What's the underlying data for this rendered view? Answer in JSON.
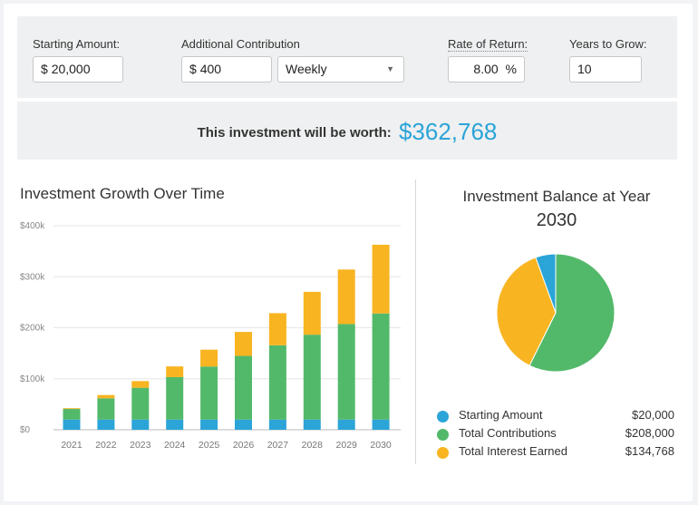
{
  "inputs": {
    "starting_amount_label": "Starting Amount:",
    "starting_amount_prefix": "$",
    "starting_amount_value": "20,000",
    "additional_label": "Additional Contribution",
    "additional_prefix": "$",
    "additional_value": "400",
    "frequency_value": "Weekly",
    "rate_label": "Rate of Return:",
    "rate_value": "8.00",
    "rate_suffix": "%",
    "years_label": "Years to Grow:",
    "years_value": "10"
  },
  "result": {
    "text": "This investment will be worth:",
    "value": "$362,768"
  },
  "bar_chart": {
    "title": "Investment Growth Over Time"
  },
  "pie_chart": {
    "title": "Investment Balance at Year",
    "year": "2030"
  },
  "legend": [
    {
      "name": "Starting Amount",
      "amount": "$20,000",
      "color": "#2ba4d8"
    },
    {
      "name": "Total Contributions",
      "amount": "$208,000",
      "color": "#53b96a"
    },
    {
      "name": "Total Interest Earned",
      "amount": "$134,768",
      "color": "#f8b421"
    }
  ],
  "chart_data": [
    {
      "type": "bar",
      "title": "Investment Growth Over Time",
      "stacked": true,
      "categories": [
        "2021",
        "2022",
        "2023",
        "2024",
        "2025",
        "2026",
        "2027",
        "2028",
        "2029",
        "2030"
      ],
      "series": [
        {
          "name": "Starting Amount",
          "color": "#2ba4d8",
          "values": [
            20000,
            20000,
            20000,
            20000,
            20000,
            20000,
            20000,
            20000,
            20000,
            20000
          ]
        },
        {
          "name": "Total Contributions",
          "color": "#53b96a",
          "values": [
            20800,
            41600,
            62400,
            83200,
            104000,
            124800,
            145600,
            166400,
            187200,
            208000
          ]
        },
        {
          "name": "Total Interest Earned",
          "color": "#f8b421",
          "values": [
            1500,
            6500,
            13000,
            21000,
            33000,
            47000,
            63000,
            84000,
            107000,
            134768
          ]
        }
      ],
      "yticks": [
        "$0",
        "$100k",
        "$200k",
        "$300k",
        "$400k"
      ],
      "ylim": [
        0,
        400000
      ],
      "grid": true
    },
    {
      "type": "pie",
      "title": "Investment Balance at Year 2030",
      "labels": [
        "Starting Amount",
        "Total Contributions",
        "Total Interest Earned"
      ],
      "values": [
        20000,
        208000,
        134768
      ],
      "colors": [
        "#2ba4d8",
        "#53b96a",
        "#f8b421"
      ]
    }
  ]
}
